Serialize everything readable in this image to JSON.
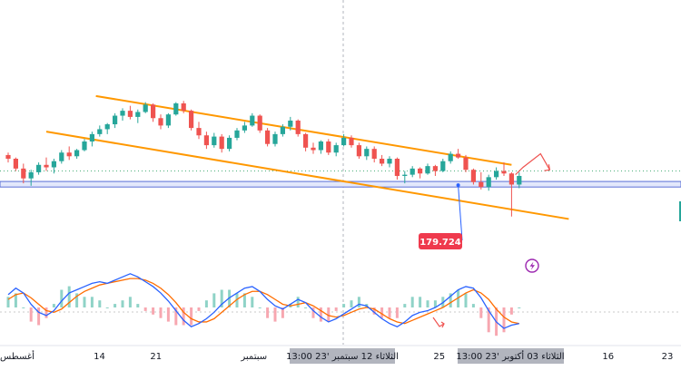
{
  "chart_data": {
    "type": "candlestick",
    "title": "",
    "price_label": "179.724",
    "colors": {
      "up": "#26a69a",
      "down": "#ef5350",
      "channel": "#ff9800",
      "zone_fill": "#e3e8fb",
      "zone_border": "#5b6fd6",
      "price_tag": "#ef3a4d",
      "macd_line": "#2962ff",
      "signal_line": "#ff6d00",
      "hist_up": "#8fd3c7",
      "hist_down": "#f7a7b0",
      "projection": "#ef5350",
      "alert_icon": "#9c27b0",
      "axis_highlight": "#b2b5be"
    },
    "x_axis": {
      "ticks": [
        {
          "label": "أغسطس",
          "pos": 0.0
        },
        {
          "label": "14",
          "pos": 0.146
        },
        {
          "label": "21",
          "pos": 0.229
        },
        {
          "label": "سبتمبر",
          "pos": 0.373
        },
        {
          "label": "25",
          "pos": 0.645
        },
        {
          "label": "16",
          "pos": 0.893
        },
        {
          "label": "23",
          "pos": 0.98
        }
      ],
      "highlights": [
        {
          "label": "الثلاثاء 12 سبتمبر '23   13:00"
        },
        {
          "label": "الثلاثاء 03 أكتوبر '23   13:00"
        }
      ]
    },
    "series": [
      {
        "name": "",
        "type": "candlestick",
        "ohlc": [
          [
            182.2,
            182.4,
            181.6,
            181.9
          ],
          [
            181.9,
            182.0,
            180.9,
            181.1
          ],
          [
            181.1,
            181.5,
            179.9,
            180.3
          ],
          [
            180.3,
            181.0,
            179.7,
            180.8
          ],
          [
            180.8,
            181.6,
            180.6,
            181.4
          ],
          [
            181.4,
            182.0,
            180.9,
            181.2
          ],
          [
            181.2,
            181.9,
            180.7,
            181.7
          ],
          [
            181.7,
            182.6,
            181.5,
            182.4
          ],
          [
            182.4,
            182.9,
            181.8,
            182.1
          ],
          [
            182.1,
            182.7,
            181.9,
            182.6
          ],
          [
            182.6,
            183.5,
            182.5,
            183.3
          ],
          [
            183.3,
            184.1,
            182.9,
            183.9
          ],
          [
            183.9,
            184.6,
            183.7,
            184.3
          ],
          [
            184.3,
            184.8,
            183.9,
            184.7
          ],
          [
            184.7,
            185.6,
            184.4,
            185.4
          ],
          [
            185.4,
            186.0,
            185.0,
            185.8
          ],
          [
            185.8,
            186.2,
            185.1,
            185.3
          ],
          [
            185.3,
            185.9,
            184.8,
            185.7
          ],
          [
            185.7,
            186.5,
            185.6,
            186.3
          ],
          [
            186.3,
            186.4,
            184.9,
            185.2
          ],
          [
            185.2,
            185.5,
            184.3,
            184.6
          ],
          [
            184.6,
            185.6,
            184.4,
            185.5
          ],
          [
            185.5,
            186.5,
            185.4,
            186.4
          ],
          [
            186.4,
            186.6,
            185.6,
            185.8
          ],
          [
            185.8,
            185.9,
            184.2,
            184.4
          ],
          [
            184.4,
            184.9,
            183.5,
            183.8
          ],
          [
            183.8,
            184.1,
            182.7,
            183.0
          ],
          [
            183.0,
            184.0,
            182.8,
            183.7
          ],
          [
            183.7,
            183.9,
            182.4,
            182.7
          ],
          [
            182.7,
            183.8,
            182.5,
            183.6
          ],
          [
            183.6,
            184.4,
            183.4,
            184.2
          ],
          [
            184.2,
            184.9,
            184.0,
            184.6
          ],
          [
            184.6,
            185.6,
            184.5,
            185.4
          ],
          [
            185.4,
            185.5,
            184.0,
            184.2
          ],
          [
            184.2,
            184.4,
            182.9,
            183.1
          ],
          [
            183.1,
            184.1,
            182.9,
            183.9
          ],
          [
            183.9,
            184.7,
            183.7,
            184.5
          ],
          [
            184.5,
            185.3,
            184.2,
            185.0
          ],
          [
            185.0,
            185.1,
            183.7,
            183.9
          ],
          [
            183.9,
            184.0,
            182.5,
            182.8
          ],
          [
            182.8,
            183.2,
            182.3,
            182.6
          ],
          [
            182.6,
            183.4,
            182.3,
            183.3
          ],
          [
            183.3,
            183.5,
            182.2,
            182.4
          ],
          [
            182.4,
            183.2,
            182.1,
            183.0
          ],
          [
            183.0,
            183.9,
            182.9,
            183.6
          ],
          [
            183.6,
            183.8,
            182.8,
            183.0
          ],
          [
            183.0,
            183.2,
            181.9,
            182.1
          ],
          [
            182.1,
            182.9,
            181.8,
            182.7
          ],
          [
            182.7,
            182.9,
            181.6,
            181.9
          ],
          [
            181.9,
            182.2,
            181.3,
            181.5
          ],
          [
            181.5,
            182.1,
            181.2,
            181.9
          ],
          [
            181.9,
            182.0,
            180.2,
            180.5
          ],
          [
            180.5,
            180.9,
            179.9,
            180.6
          ],
          [
            180.6,
            181.3,
            180.4,
            181.1
          ],
          [
            181.1,
            181.2,
            180.3,
            180.7
          ],
          [
            180.7,
            181.5,
            180.6,
            181.3
          ],
          [
            181.3,
            181.4,
            180.5,
            180.9
          ],
          [
            180.9,
            181.9,
            180.8,
            181.7
          ],
          [
            181.7,
            182.5,
            181.5,
            182.3
          ],
          [
            182.3,
            182.7,
            181.9,
            182.0
          ],
          [
            182.0,
            182.2,
            180.8,
            181.0
          ],
          [
            181.0,
            181.1,
            179.8,
            180.0
          ],
          [
            180.0,
            180.8,
            179.4,
            179.6
          ],
          [
            179.6,
            180.6,
            179.3,
            180.4
          ],
          [
            180.4,
            181.2,
            180.2,
            180.9
          ],
          [
            180.9,
            181.6,
            180.5,
            180.7
          ],
          [
            180.7,
            180.8,
            177.2,
            179.8
          ],
          [
            179.8,
            180.8,
            179.5,
            180.5
          ]
        ]
      }
    ],
    "indicator": {
      "name": "",
      "macd": [
        0.8,
        1.2,
        0.9,
        0.2,
        -0.3,
        -0.5,
        -0.2,
        0.4,
        0.9,
        1.1,
        1.3,
        1.5,
        1.6,
        1.5,
        1.7,
        1.9,
        2.1,
        1.9,
        1.6,
        1.3,
        0.9,
        0.4,
        -0.2,
        -0.8,
        -1.2,
        -1.0,
        -0.7,
        -0.3,
        0.2,
        0.6,
        0.9,
        1.2,
        1.3,
        1.0,
        0.5,
        0.1,
        -0.1,
        0.2,
        0.5,
        0.3,
        -0.2,
        -0.6,
        -0.9,
        -0.7,
        -0.4,
        -0.1,
        0.2,
        0.1,
        -0.3,
        -0.7,
        -1.0,
        -1.2,
        -0.9,
        -0.5,
        -0.3,
        -0.2,
        0.0,
        0.3,
        0.7,
        1.1,
        1.3,
        1.2,
        0.6,
        -0.2,
        -0.9,
        -1.3,
        -1.1,
        -1.0
      ],
      "signal": [
        0.5,
        0.8,
        0.9,
        0.6,
        0.2,
        -0.2,
        -0.3,
        -0.1,
        0.3,
        0.7,
        1.0,
        1.2,
        1.4,
        1.5,
        1.6,
        1.7,
        1.8,
        1.8,
        1.7,
        1.5,
        1.2,
        0.8,
        0.3,
        -0.3,
        -0.7,
        -0.9,
        -0.9,
        -0.7,
        -0.3,
        0.1,
        0.5,
        0.8,
        1.0,
        1.0,
        0.8,
        0.5,
        0.2,
        0.1,
        0.2,
        0.3,
        0.1,
        -0.2,
        -0.5,
        -0.6,
        -0.5,
        -0.3,
        -0.1,
        0.0,
        -0.1,
        -0.4,
        -0.7,
        -0.9,
        -1.0,
        -0.8,
        -0.6,
        -0.4,
        -0.2,
        0.0,
        0.3,
        0.6,
        0.9,
        1.1,
        0.9,
        0.5,
        -0.1,
        -0.6,
        -0.9,
        -1.0
      ],
      "ylim": [
        -2.2,
        2.2
      ]
    },
    "ylim": [
      176.0,
      187.8
    ],
    "channel_upper": {
      "start": [
        11.5,
        187.0
      ],
      "end": [
        66.0,
        181.4
      ]
    },
    "channel_lower": {
      "start": [
        5.0,
        184.1
      ],
      "end": [
        73.5,
        177.0
      ]
    },
    "support_zone": [
      179.6,
      180.05
    ],
    "dotted_level": 180.9,
    "projection": [
      [
        66.5,
        180.6
      ],
      [
        67.5,
        181.2
      ],
      [
        69.8,
        182.3
      ],
      [
        71.0,
        181.0
      ]
    ],
    "grid": false,
    "legend": "none"
  }
}
